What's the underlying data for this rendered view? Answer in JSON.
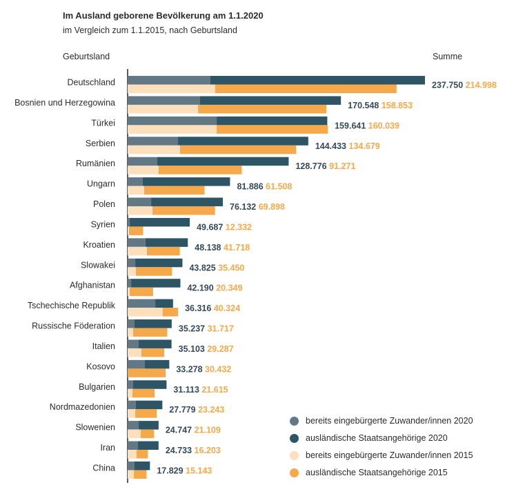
{
  "chart_data": {
    "type": "bar",
    "orientation": "horizontal",
    "stacked": true,
    "title": "Im Ausland geborene Bevölkerung am 1.1.2020",
    "subtitle": "im Vergleich zum 1.1.2015, nach Geburtsland",
    "category_header": "Geburtsland",
    "sum_header": "Summe",
    "grid": false,
    "legend_position": "bottom-right",
    "categories": [
      "Deutschland",
      "Bosnien und Herzegowina",
      "Türkei",
      "Serbien",
      "Rumänien",
      "Ungarn",
      "Polen",
      "Syrien",
      "Kroatien",
      "Slowakei",
      "Afghanistan",
      "Tschechische Republik",
      "Russische Föderation",
      "Italien",
      "Kosovo",
      "Bulgarien",
      "Nordmazedonien",
      "Slowenien",
      "Iran",
      "China"
    ],
    "total_2020_labels": [
      "237.750",
      "170.548",
      "159.641",
      "144.433",
      "128.776",
      "81.886",
      "76.132",
      "49.687",
      "48.138",
      "43.825",
      "42.190",
      "36.316",
      "35.237",
      "35.103",
      "33.278",
      "31.113",
      "27.779",
      "24.747",
      "24.733",
      "17.829"
    ],
    "total_2015_labels": [
      "214.998",
      "158.853",
      "160.039",
      "134.679",
      "91.271",
      "61.508",
      "69.898",
      "12.332",
      "41.718",
      "35.450",
      "20.349",
      "40.324",
      "31.717",
      "29.287",
      "30.432",
      "21.615",
      "23.243",
      "21.109",
      "16.203",
      "15.143"
    ],
    "total_2020": [
      237750,
      170548,
      159641,
      144433,
      128776,
      81886,
      76132,
      49687,
      48138,
      43825,
      42190,
      36316,
      35237,
      35103,
      33278,
      31113,
      27779,
      24747,
      24733,
      17829
    ],
    "total_2015": [
      214998,
      158853,
      160039,
      134679,
      91271,
      61508,
      69898,
      12332,
      41718,
      35450,
      20349,
      40324,
      31717,
      29287,
      30432,
      21615,
      23243,
      21109,
      16203,
      15143
    ],
    "naturalized_2020": [
      66200,
      57900,
      71200,
      40300,
      23700,
      12100,
      18800,
      1700,
      14300,
      6100,
      2800,
      22100,
      5500,
      8800,
      13800,
      4400,
      6600,
      8800,
      8300,
      5500
    ],
    "naturalized_2015": [
      70000,
      56300,
      71200,
      41900,
      24800,
      13200,
      19900,
      1100,
      15400,
      6600,
      1700,
      28100,
      4400,
      11000,
      0,
      3900,
      6100,
      10500,
      7200,
      5000
    ],
    "series": [
      {
        "name": "bereits eingebürgerte Zuwander/innen 2020",
        "color": "#627885"
      },
      {
        "name": "ausländische Staatsangehörige 2020",
        "color": "#2e5566"
      },
      {
        "name": "bereits eingebürgerte Zuwander/innen 2015",
        "color": "#fcdfbd"
      },
      {
        "name": "ausländische Staatsangehörige 2015",
        "color": "#f5a94b"
      }
    ],
    "xlim": [
      0,
      240000
    ],
    "label_colors": {
      "y2020": "#34495a",
      "y2015": "#f5a94b"
    }
  }
}
